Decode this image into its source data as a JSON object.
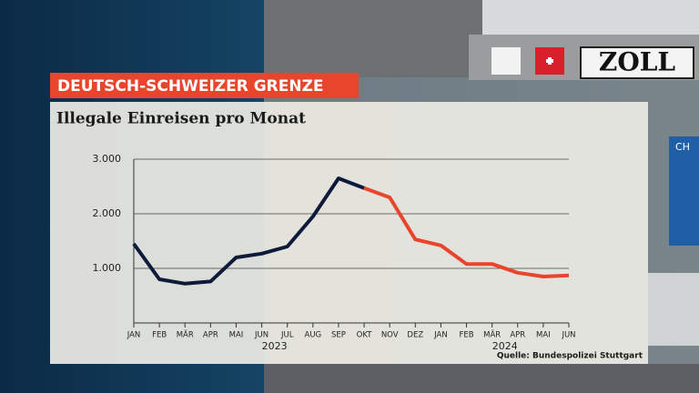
{
  "background": {
    "sign": "ZOLL",
    "lane_sign": "CH"
  },
  "chart_data": {
    "type": "line",
    "label": "DEUTSCH-SCHWEIZER GRENZE",
    "title": "Illegale Einreisen pro Monat",
    "categories": [
      "JAN",
      "FEB",
      "MÄR",
      "APR",
      "MAI",
      "JUN",
      "JUL",
      "AUG",
      "SEP",
      "OKT",
      "NOV",
      "DEZ",
      "JAN",
      "FEB",
      "MÄR",
      "APR",
      "MAI",
      "JUN"
    ],
    "x_groups": [
      {
        "label": "2023",
        "from": 0,
        "to": 11
      },
      {
        "label": "2024",
        "from": 12,
        "to": 17
      }
    ],
    "series": [
      {
        "color": "#0d1a3a",
        "values": [
          1450,
          800,
          720,
          760,
          1200,
          1270,
          1400,
          1950,
          2650,
          2470,
          null,
          null,
          null,
          null,
          null,
          null,
          null,
          null
        ]
      },
      {
        "color": "#e8452c",
        "values": [
          null,
          null,
          null,
          null,
          null,
          null,
          null,
          null,
          null,
          2470,
          2300,
          1530,
          1420,
          1080,
          1080,
          920,
          850,
          870
        ]
      }
    ],
    "ylim": [
      0,
      3000
    ],
    "yticks": [
      {
        "value": 1000,
        "label": "1.000"
      },
      {
        "value": 2000,
        "label": "2.000"
      },
      {
        "value": 3000,
        "label": "3.000"
      }
    ],
    "grid": true,
    "source": "Quelle: Bundespolizei Stuttgart"
  }
}
